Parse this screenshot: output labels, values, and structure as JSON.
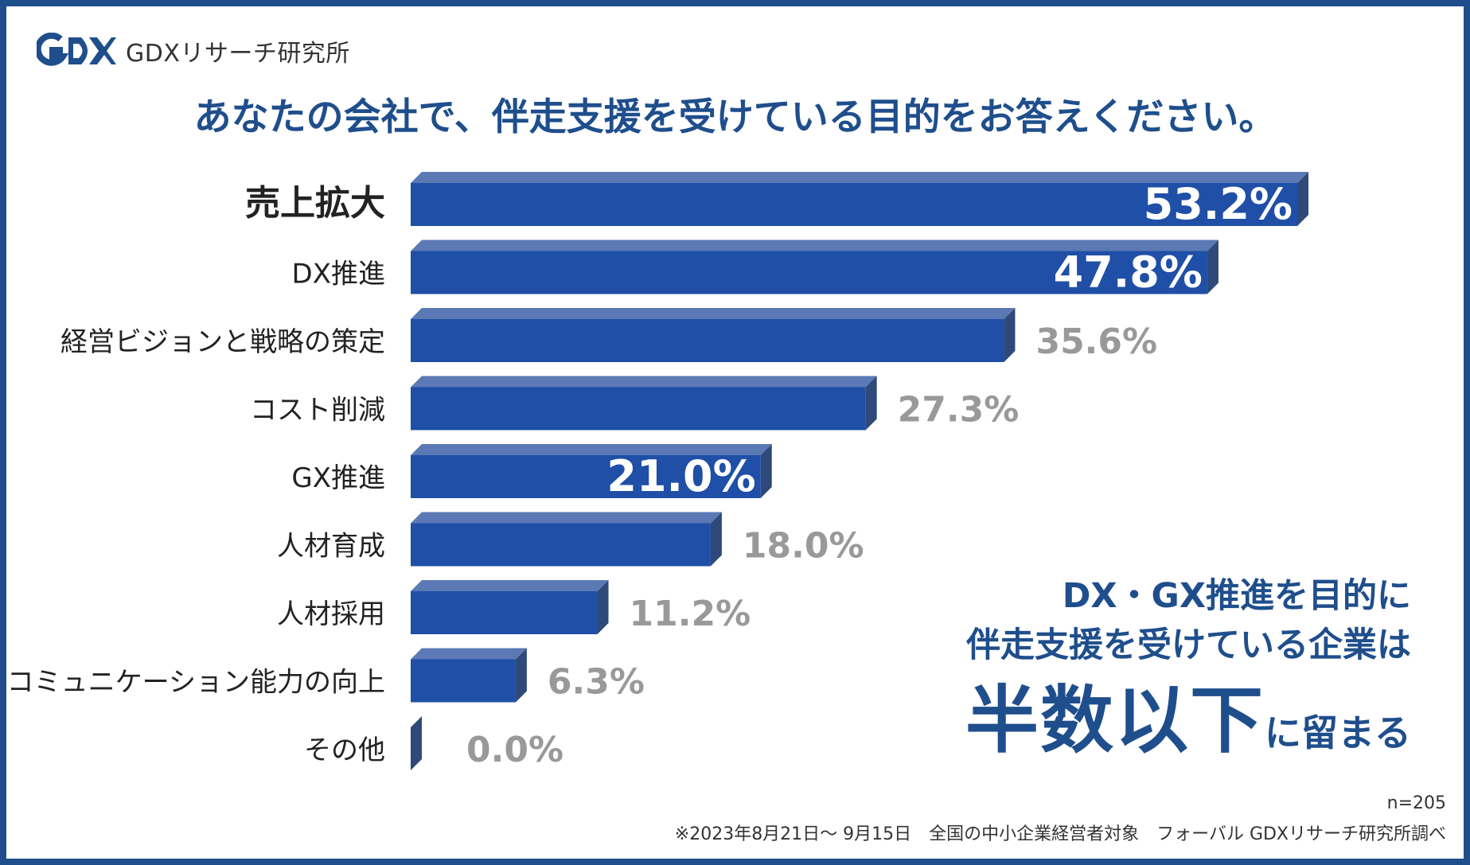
{
  "brand": {
    "logo_text": "GDX",
    "name": "GDXリサーチ研究所"
  },
  "title": "あなたの会社で、伴走支援を受けている目的をお答えください。",
  "chart_data": {
    "type": "bar",
    "orientation": "horizontal",
    "categories": [
      "売上拡大",
      "DX推進",
      "経営ビジョンと戦略の策定",
      "コスト削減",
      "GX推進",
      "人材育成",
      "人材採用",
      "コミュニケーション能力の向上",
      "その他"
    ],
    "values": [
      53.2,
      47.8,
      35.6,
      27.3,
      21.0,
      18.0,
      11.2,
      6.3,
      0.0
    ],
    "value_labels": [
      "53.2%",
      "47.8%",
      "35.6%",
      "27.3%",
      "21.0%",
      "18.0%",
      "11.2%",
      "6.3%",
      "0.0%"
    ],
    "highlighted_categories": [
      "売上拡大",
      "DX推進",
      "GX推進"
    ],
    "bar_color": "#1f4fa6",
    "bar_top_color": "#5b79b5",
    "bar_side_color": "#2f4a7a",
    "label_inside_color": "#ffffff",
    "label_outside_color": "#999999"
  },
  "callout": {
    "line1": "DX・GX推進を目的に",
    "line2": "伴走支援を受けている企業は",
    "emphasis": "半数以下",
    "suffix": "に留まる"
  },
  "sample_size": "n=205",
  "footnote": "※2023年8月21日～ 9月15日　全国の中小企業経営者対象　フォーバル GDXリサーチ研究所調べ",
  "colors": {
    "accent": "#1f4e8c",
    "frame": "#1f4e8c"
  }
}
